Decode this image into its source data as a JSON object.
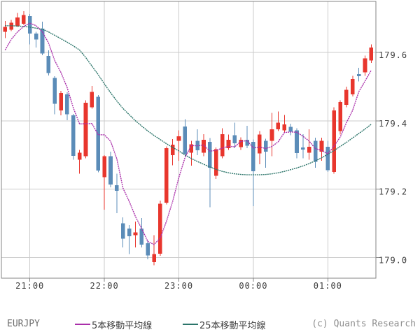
{
  "legend": {
    "symbol": "EURJPY",
    "ma5_label": "5本移動平均線",
    "ma25_label": "25本移動平均線"
  },
  "footer": {
    "copyright": "(c) Quants Research"
  },
  "colors": {
    "bull_candle": "#e8362d",
    "bear_candle": "#5b8cb8",
    "ma5_line": "#aa2faa",
    "ma25_line": "#2c756a",
    "grid": "#cbcbcb",
    "border": "#848484",
    "tick_text": "#3c3c3c"
  },
  "axes": {
    "y_ticks": [
      {
        "label": "179.6",
        "value": 179.6
      },
      {
        "label": "179.4",
        "value": 179.4
      },
      {
        "label": "179.2",
        "value": 179.2
      },
      {
        "label": "179.0",
        "value": 179.0
      }
    ],
    "x_ticks": [
      {
        "label": "21:00",
        "index": 4
      },
      {
        "label": "22:00",
        "index": 16
      },
      {
        "label": "23:00",
        "index": 28
      },
      {
        "label": "00:00",
        "index": 40
      },
      {
        "label": "01:00",
        "index": 52
      }
    ]
  },
  "chart_data": {
    "type": "candlestick",
    "symbol": "EURJPY",
    "interval_minutes": 5,
    "ylim": [
      178.94,
      179.75
    ],
    "grid": true,
    "series": [
      {
        "name": "5本移動平均線",
        "type": "line",
        "derived": "sma5_of_close"
      },
      {
        "name": "25本移動平均線",
        "type": "line",
        "values_key": "ma25"
      }
    ],
    "times": [
      "20:40",
      "20:45",
      "20:50",
      "20:55",
      "21:00",
      "21:05",
      "21:10",
      "21:15",
      "21:20",
      "21:25",
      "21:30",
      "21:35",
      "21:40",
      "21:45",
      "21:50",
      "21:55",
      "22:00",
      "22:05",
      "22:10",
      "22:15",
      "22:20",
      "22:25",
      "22:30",
      "22:35",
      "22:40",
      "22:45",
      "22:50",
      "22:55",
      "23:00",
      "23:05",
      "23:10",
      "23:15",
      "23:20",
      "23:25",
      "23:30",
      "23:35",
      "23:40",
      "23:45",
      "23:50",
      "23:55",
      "00:00",
      "00:05",
      "00:10",
      "00:15",
      "00:20",
      "00:25",
      "00:30",
      "00:35",
      "00:40",
      "00:45",
      "00:50",
      "00:55",
      "01:00",
      "01:05",
      "01:10",
      "01:15",
      "01:20",
      "01:25",
      "01:30",
      "01:35"
    ],
    "ohlc": [
      [
        179.66,
        179.692,
        179.642,
        179.675
      ],
      [
        179.666,
        179.695,
        179.662,
        179.687
      ],
      [
        179.678,
        179.716,
        179.675,
        179.702
      ],
      [
        179.684,
        179.721,
        179.68,
        179.709
      ],
      [
        179.706,
        179.712,
        179.624,
        179.655
      ],
      [
        179.655,
        179.66,
        179.614,
        179.638
      ],
      [
        179.67,
        179.69,
        179.592,
        179.597
      ],
      [
        179.59,
        179.606,
        179.533,
        179.54
      ],
      [
        179.525,
        179.53,
        179.419,
        179.45
      ],
      [
        179.43,
        179.488,
        179.416,
        179.481
      ],
      [
        179.477,
        179.483,
        179.402,
        179.419
      ],
      [
        179.416,
        179.42,
        179.286,
        179.297
      ],
      [
        179.286,
        179.315,
        179.245,
        179.307
      ],
      [
        179.296,
        179.46,
        179.29,
        179.453
      ],
      [
        179.44,
        179.502,
        179.435,
        179.484
      ],
      [
        179.47,
        179.475,
        179.249,
        179.255
      ],
      [
        179.235,
        179.3,
        179.14,
        179.296
      ],
      [
        179.296,
        179.31,
        179.205,
        179.214
      ],
      [
        179.212,
        179.245,
        179.13,
        179.195
      ],
      [
        179.1,
        179.118,
        179.03,
        179.055
      ],
      [
        179.085,
        179.095,
        179.01,
        179.062
      ],
      [
        179.065,
        179.105,
        179.03,
        179.074
      ],
      [
        179.085,
        179.116,
        179.03,
        179.038
      ],
      [
        179.042,
        179.05,
        178.995,
        179.006
      ],
      [
        178.987,
        179.065,
        178.978,
        179.01
      ],
      [
        179.011,
        179.167,
        179.005,
        179.157
      ],
      [
        179.16,
        179.325,
        179.155,
        179.32
      ],
      [
        179.3,
        179.347,
        179.27,
        179.33
      ],
      [
        179.341,
        179.372,
        179.283,
        179.355
      ],
      [
        179.383,
        179.405,
        179.296,
        179.303
      ],
      [
        179.307,
        179.341,
        179.269,
        179.331
      ],
      [
        179.341,
        179.375,
        179.3,
        179.314
      ],
      [
        179.307,
        179.361,
        179.296,
        179.344
      ],
      [
        179.338,
        179.35,
        179.147,
        179.263
      ],
      [
        179.239,
        179.322,
        179.23,
        179.317
      ],
      [
        179.296,
        179.378,
        179.29,
        179.361
      ],
      [
        179.32,
        179.36,
        179.315,
        179.344
      ],
      [
        179.358,
        179.395,
        179.32,
        179.334
      ],
      [
        179.323,
        179.352,
        179.315,
        179.344
      ],
      [
        179.344,
        179.385,
        179.32,
        179.327
      ],
      [
        179.338,
        179.345,
        179.15,
        179.253
      ],
      [
        179.305,
        179.37,
        179.273,
        179.36
      ],
      [
        179.341,
        179.348,
        179.263,
        179.31
      ],
      [
        179.341,
        179.423,
        179.296,
        179.375
      ],
      [
        179.375,
        179.427,
        179.37,
        179.395
      ],
      [
        179.372,
        179.417,
        179.365,
        179.389
      ],
      [
        179.382,
        179.392,
        179.358,
        179.368
      ],
      [
        179.372,
        179.378,
        179.29,
        179.306
      ],
      [
        179.322,
        179.361,
        179.29,
        179.316
      ],
      [
        179.307,
        179.375,
        179.286,
        179.324
      ],
      [
        179.341,
        179.351,
        179.263,
        179.28
      ],
      [
        179.31,
        179.351,
        179.283,
        179.341
      ],
      [
        179.324,
        179.341,
        179.25,
        179.256
      ],
      [
        179.25,
        179.44,
        179.245,
        179.43
      ],
      [
        179.37,
        179.46,
        179.36,
        179.455
      ],
      [
        179.447,
        179.5,
        179.44,
        179.491
      ],
      [
        179.477,
        179.532,
        179.471,
        179.522
      ],
      [
        179.537,
        179.555,
        179.515,
        179.53
      ],
      [
        179.542,
        179.591,
        179.532,
        179.583
      ],
      [
        179.576,
        179.624,
        179.569,
        179.614
      ]
    ],
    "ma5_lead": [
      179.607,
      179.638,
      179.66,
      179.676
    ],
    "ma25": [
      179.678,
      179.678,
      179.677,
      179.676,
      179.674,
      179.671,
      179.668,
      179.66,
      179.65,
      179.64,
      179.63,
      179.619,
      179.607,
      179.585,
      179.56,
      179.535,
      179.508,
      179.482,
      179.458,
      179.436,
      179.418,
      179.4,
      179.385,
      179.37,
      179.357,
      179.345,
      179.333,
      179.322,
      179.312,
      179.3,
      179.29,
      179.281,
      179.273,
      179.265,
      179.258,
      179.252,
      179.248,
      179.245,
      179.243,
      179.242,
      179.242,
      179.242,
      179.243,
      179.245,
      179.248,
      179.252,
      179.257,
      179.262,
      179.268,
      179.275,
      179.283,
      179.292,
      179.302,
      179.313,
      179.325,
      179.337,
      179.35,
      179.363,
      179.376,
      179.39
    ]
  }
}
